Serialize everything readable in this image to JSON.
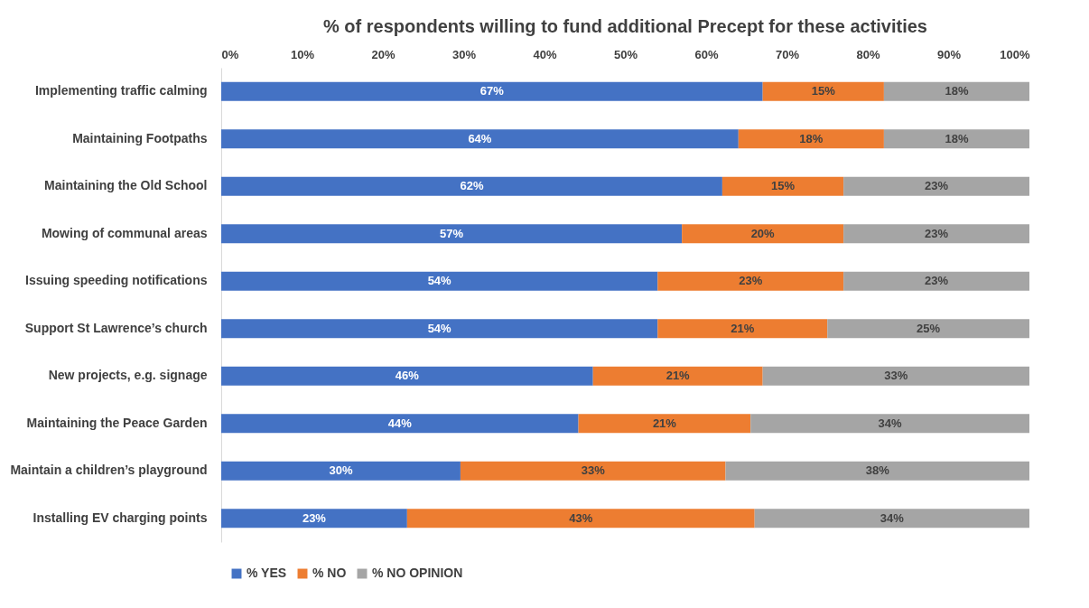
{
  "chart_data": {
    "type": "bar",
    "orientation": "horizontal",
    "stacked": true,
    "title": "% of respondents willing to fund additional Precept for these activities",
    "categories": [
      "Implementing traffic calming",
      "Maintaining Footpaths",
      "Maintaining the Old School",
      "Mowing of communal areas",
      "Issuing speeding notifications",
      "Support St Lawrence’s church",
      "New projects, e.g. signage",
      "Maintaining the Peace Garden",
      "Maintain a children’s playground",
      "Installing EV charging points"
    ],
    "series": [
      {
        "name": "% YES",
        "color": "#4472c4",
        "values": [
          67,
          64,
          62,
          57,
          54,
          54,
          46,
          44.2,
          29.6,
          23
        ],
        "value_labels": [
          "67%",
          "64%",
          "62%",
          "57%",
          "54%",
          "54%",
          "46%",
          "44%",
          "30%",
          "23%"
        ]
      },
      {
        "name": "% NO",
        "color": "#ed7d31",
        "values": [
          15,
          18,
          15,
          20,
          23,
          21,
          21,
          21.3,
          32.8,
          43
        ],
        "value_labels": [
          "15%",
          "18%",
          "15%",
          "20%",
          "23%",
          "21%",
          "21%",
          "21%",
          "33%",
          "43%"
        ]
      },
      {
        "name": "% NO OPINION",
        "color": "#a5a5a5",
        "values": [
          18,
          18,
          23,
          23,
          23,
          25,
          33,
          34.5,
          37.6,
          34
        ],
        "value_labels": [
          "18%",
          "18%",
          "23%",
          "23%",
          "23%",
          "25%",
          "33%",
          "34%",
          "38%",
          "34%"
        ]
      }
    ],
    "xlim": [
      0,
      100
    ],
    "xticks": [
      {
        "value": 0,
        "label": "0%"
      },
      {
        "value": 10,
        "label": "10%"
      },
      {
        "value": 20,
        "label": "20%"
      },
      {
        "value": 30,
        "label": "30%"
      },
      {
        "value": 40,
        "label": "40%"
      },
      {
        "value": 50,
        "label": "50%"
      },
      {
        "value": 60,
        "label": "60%"
      },
      {
        "value": 70,
        "label": "70%"
      },
      {
        "value": 80,
        "label": "80%"
      },
      {
        "value": 90,
        "label": "90%"
      },
      {
        "value": 100,
        "label": "100%"
      }
    ],
    "grid": false,
    "legend": "bottom"
  }
}
